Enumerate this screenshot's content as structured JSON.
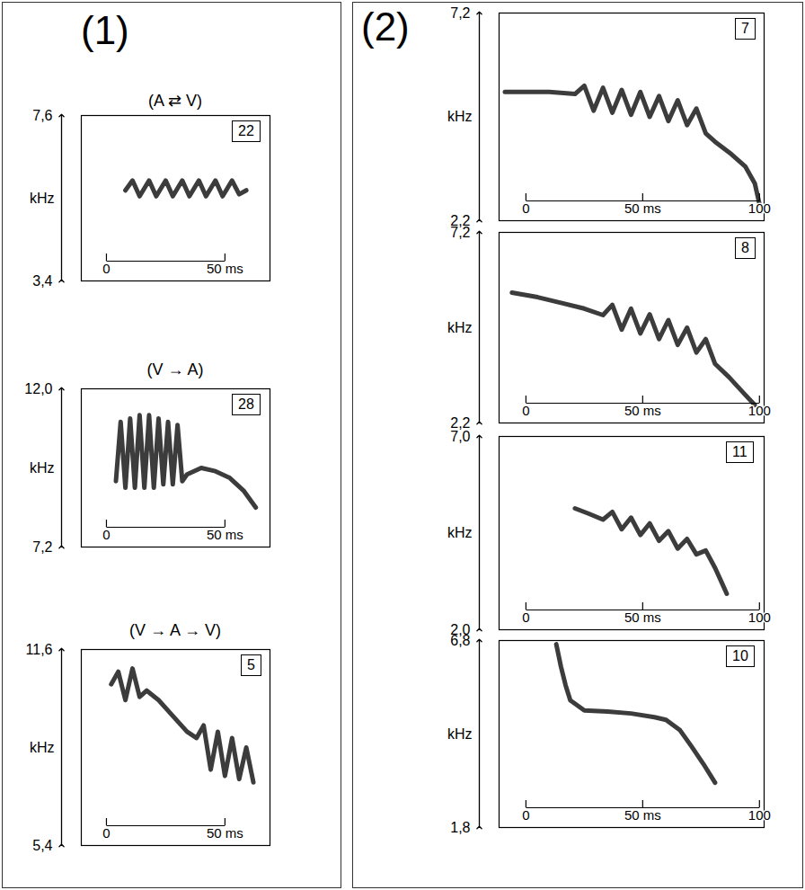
{
  "chart_data": [
    {
      "type": "spectrogram",
      "group": "(1)",
      "title": "(A ⇄ V)",
      "panel": "22",
      "ylabel": "kHz",
      "color": "#1a1a1a",
      "xlim": [
        -10.6,
        69
      ],
      "xticks": [
        0,
        {
          "value": 50,
          "label": "50 ms"
        }
      ],
      "ylim": [
        3.4,
        7.6
      ],
      "yticks": [
        {
          "value": 3.4,
          "label": "3,4"
        },
        {
          "value": 7.6,
          "label": "7,6"
        }
      ],
      "x": [
        8,
        11,
        14,
        18,
        21,
        25,
        28,
        32,
        35,
        39,
        42,
        46,
        49,
        53,
        56,
        59
      ],
      "values": [
        5.7,
        5.95,
        5.55,
        5.95,
        5.55,
        5.95,
        5.55,
        5.95,
        5.55,
        5.95,
        5.55,
        5.95,
        5.55,
        5.95,
        5.6,
        5.7
      ]
    },
    {
      "type": "spectrogram",
      "group": "(1)",
      "title": "(V → A)",
      "panel": "28",
      "ylabel": "kHz",
      "color": "#1a1a1a",
      "xlim": [
        -10.6,
        69
      ],
      "xticks": [
        0,
        {
          "value": 50,
          "label": "50 ms"
        }
      ],
      "ylim": [
        7.2,
        12.0
      ],
      "yticks": [
        {
          "value": 7.2,
          "label": "7,2"
        },
        {
          "value": 12.0,
          "label": "12,0"
        }
      ],
      "x": [
        4,
        6,
        8,
        10,
        12,
        14,
        16,
        18,
        20,
        22,
        24,
        26,
        28,
        30,
        32,
        34,
        40,
        46,
        52,
        58,
        63
      ],
      "values": [
        9.2,
        11.0,
        9.0,
        11.1,
        9.0,
        11.2,
        9.0,
        11.2,
        9.0,
        11.1,
        9.1,
        11.0,
        9.1,
        10.9,
        9.2,
        9.4,
        9.6,
        9.5,
        9.3,
        8.9,
        8.4
      ]
    },
    {
      "type": "spectrogram",
      "group": "(1)",
      "title": "(V → A → V)",
      "panel": "5",
      "ylabel": "kHz",
      "color": "#1a1a1a",
      "xlim": [
        -10.6,
        69
      ],
      "xticks": [
        0,
        {
          "value": 50,
          "label": "50 ms"
        }
      ],
      "ylim": [
        5.4,
        11.6
      ],
      "yticks": [
        {
          "value": 5.4,
          "label": "5,4"
        },
        {
          "value": 11.6,
          "label": "11,6"
        }
      ],
      "x": [
        2,
        5,
        8,
        11,
        14,
        17,
        22,
        28,
        34,
        38,
        41,
        44,
        47,
        50,
        53,
        56,
        59,
        62
      ],
      "values": [
        10.5,
        10.9,
        10.0,
        11.0,
        10.1,
        10.3,
        10.0,
        9.5,
        9.0,
        8.8,
        9.2,
        7.8,
        9.0,
        7.6,
        8.8,
        7.5,
        8.5,
        7.4
      ]
    },
    {
      "type": "spectrogram",
      "group": "(2)",
      "panel": "7",
      "ylabel": "kHz",
      "color": "#1a1a1a",
      "xlim": [
        -11.5,
        102
      ],
      "xticks": [
        0,
        {
          "value": 50,
          "label": "50 ms"
        },
        100
      ],
      "ylim": [
        2.2,
        7.2
      ],
      "yticks": [
        {
          "value": 2.2,
          "label": "2,2"
        },
        {
          "value": 7.2,
          "label": "7,2"
        }
      ],
      "x": [
        -9,
        0,
        10,
        21,
        25,
        29,
        33,
        37,
        41,
        45,
        49,
        53,
        57,
        61,
        65,
        69,
        73,
        77,
        81,
        88,
        94,
        98,
        100
      ],
      "values": [
        5.3,
        5.3,
        5.3,
        5.25,
        5.45,
        4.85,
        5.4,
        4.8,
        5.35,
        4.75,
        5.3,
        4.7,
        5.2,
        4.6,
        5.1,
        4.5,
        4.9,
        4.3,
        4.1,
        3.8,
        3.5,
        3.1,
        2.6
      ]
    },
    {
      "type": "spectrogram",
      "group": "(2)",
      "panel": "8",
      "ylabel": "kHz",
      "color": "#1a1a1a",
      "xlim": [
        -11.5,
        102
      ],
      "xticks": [
        0,
        {
          "value": 50,
          "label": "50 ms"
        },
        100
      ],
      "ylim": [
        2.2,
        7.2
      ],
      "yticks": [
        {
          "value": 2.2,
          "label": "2,2"
        },
        {
          "value": 7.2,
          "label": "7,2"
        }
      ],
      "x": [
        -6,
        5,
        15,
        25,
        33,
        37,
        41,
        45,
        49,
        53,
        57,
        61,
        65,
        69,
        73,
        77,
        81,
        87,
        93,
        98
      ],
      "values": [
        5.62,
        5.5,
        5.35,
        5.2,
        5.03,
        5.3,
        4.65,
        5.2,
        4.55,
        5.05,
        4.4,
        4.9,
        4.25,
        4.7,
        4.05,
        4.4,
        3.75,
        3.4,
        3.0,
        2.67
      ]
    },
    {
      "type": "spectrogram",
      "group": "(2)",
      "panel": "11",
      "ylabel": "kHz",
      "color": "#1a1a1a",
      "xlim": [
        -11.5,
        102
      ],
      "xticks": [
        0,
        {
          "value": 50,
          "label": "50 ms"
        },
        100
      ],
      "ylim": [
        2.0,
        7.0
      ],
      "yticks": [
        {
          "value": 2.0,
          "label": "2,0"
        },
        {
          "value": 7.0,
          "label": "7,0"
        }
      ],
      "x": [
        21,
        27,
        33,
        37,
        41,
        45,
        49,
        53,
        57,
        61,
        65,
        69,
        73,
        77,
        81,
        84,
        86
      ],
      "values": [
        5.14,
        5.0,
        4.85,
        5.05,
        4.6,
        4.9,
        4.45,
        4.75,
        4.3,
        4.55,
        4.1,
        4.35,
        3.95,
        4.05,
        3.6,
        3.2,
        2.93
      ]
    },
    {
      "type": "spectrogram",
      "group": "(2)",
      "panel": "10",
      "ylabel": "kHz",
      "color": "#1a1a1a",
      "xlim": [
        -11.5,
        102
      ],
      "xticks": [
        0,
        {
          "value": 50,
          "label": "50 ms"
        },
        100
      ],
      "ylim": [
        1.8,
        6.8
      ],
      "yticks": [
        {
          "value": 1.8,
          "label": "1,8"
        },
        {
          "value": 6.8,
          "label": "6,8"
        }
      ],
      "x": [
        13,
        15,
        17,
        19,
        25,
        35,
        45,
        55,
        60,
        66,
        71,
        76,
        81
      ],
      "values": [
        6.7,
        6.1,
        5.6,
        5.2,
        4.93,
        4.9,
        4.85,
        4.75,
        4.68,
        4.4,
        3.96,
        3.5,
        3.0
      ]
    }
  ]
}
